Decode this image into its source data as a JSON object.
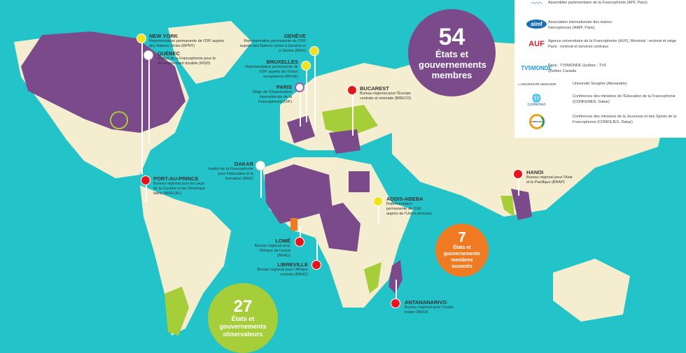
{
  "colors": {
    "ocean": "#22c3c9",
    "land": "#f4edcf",
    "member": "#7a4a8b",
    "observer": "#a6ce39",
    "associate": "#f07a22",
    "office_red": "#e8141c",
    "office_yellow": "#f2e21c"
  },
  "bubbles": {
    "members": {
      "count": "54",
      "label": "États et gouvernements membres"
    },
    "associates": {
      "count": "7",
      "label": "États et gouvernements membres associés"
    },
    "observers": {
      "count": "27",
      "label": "États et gouvernements observateurs"
    }
  },
  "offices": [
    {
      "city": "NEW YORK",
      "desc": "Représentation permanente de l'OIF auprès des Nations Unies (RPNY)",
      "marker": "yellow"
    },
    {
      "city": "QUÉBEC",
      "desc": "Institut de la Francophonie pour le développement durable (IFDD)",
      "marker": "logo"
    },
    {
      "city": "GENÈVE",
      "desc": "Représentation permanente de l'OIF auprès des Nations Unies à Genève et à Vienne (RPG)",
      "marker": "yellow"
    },
    {
      "city": "BRUXELLES",
      "desc": "Représentation permanente de l'OIF auprès de l'Union européenne (RPUE)",
      "marker": "yellow"
    },
    {
      "city": "PARIS",
      "desc": "Siège de l'Organisation internationale de la Francophonie (OIF)",
      "marker": "logo"
    },
    {
      "city": "BUCAREST",
      "desc": "Bureau régional pour l'Europe centrale et orientale (BRECO)",
      "marker": "red"
    },
    {
      "city": "DAKAR",
      "desc": "Institut de la Francophonie pour l'éducation et la formation (IFEF)",
      "marker": "logo"
    },
    {
      "city": "PORT-AU-PRINCE",
      "desc": "Bureau régional pour les pays de la Caraïbe et de l'Amérique latine (BRECAL)",
      "marker": "red"
    },
    {
      "city": "ADDIS-ABEBA",
      "desc": "Représentation permanente de l'OIF auprès de l'Union africaine",
      "marker": "yellow"
    },
    {
      "city": "HANOI",
      "desc": "Bureau régional pour l'Asie et le Pacifique (BRAP)",
      "marker": "red"
    },
    {
      "city": "LOMÉ",
      "desc": "Bureau régional pour l'Afrique de l'ouest (BRAO)",
      "marker": "red"
    },
    {
      "city": "LIBREVILLE",
      "desc": "Bureau régional pour l'Afrique centrale (BRAC)",
      "marker": "red"
    },
    {
      "city": "ANTANANARIVO",
      "desc": "Bureau régional pour l'océan Indien (BROI)",
      "marker": "red"
    }
  ],
  "legend": [
    {
      "logo": "APF",
      "icon": "apf-logo",
      "text": "Assemblée parlementaire de la Francophonie (APF, Paris)"
    },
    {
      "logo": "aimf",
      "icon": "aimf-logo",
      "text": "Association internationale des maires francophones (AIMF, Paris)"
    },
    {
      "logo": "AUF",
      "icon": "auf-logo",
      "text": "Agence universitaire de la Francophonie (AUF), Montréal : rectorat et siège Paris : rectorat et services centraux"
    },
    {
      "logo": "TV5MONDE",
      "icon": "tv5monde-logo",
      "text": "Paris : TV5MONDE Québec : TV5 Québec Canada"
    },
    {
      "logo": "L'UNIVERSITÉ SENGHOR",
      "icon": "senghor-logo",
      "text": "Université Senghor (Alexandrie)"
    },
    {
      "logo": "confemen",
      "icon": "confemen-logo",
      "text": "Conférence des ministres de l'Éducation de la Francophonie (CONFEMEN, Dakar)"
    },
    {
      "logo": "CONFEJES",
      "icon": "confejes-logo",
      "text": "Conférence des ministres de la Jeunesse et des Sports de la Francophonie (CONFEJES, Dakar)"
    }
  ]
}
